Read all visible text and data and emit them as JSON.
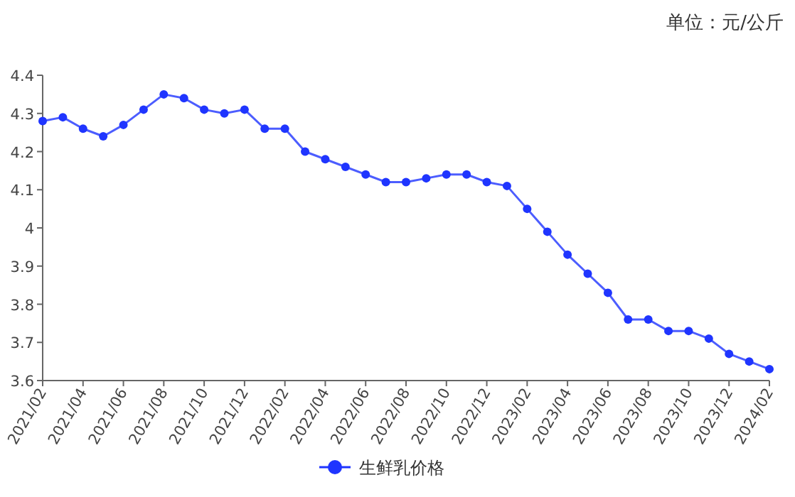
{
  "chart_data": {
    "type": "line",
    "annotations": [
      "单位：元/公斤"
    ],
    "categories": [
      "2021/02",
      null,
      "2021/04",
      null,
      "2021/06",
      null,
      "2021/08",
      null,
      "2021/10",
      null,
      "2021/12",
      null,
      "2022/02",
      null,
      "2022/04",
      null,
      "2022/06",
      null,
      "2022/08",
      null,
      "2022/10",
      null,
      "2022/12",
      null,
      "2023/02",
      null,
      "2023/04",
      null,
      "2023/06",
      null,
      "2023/08",
      null,
      "2023/10",
      null,
      "2023/12",
      null,
      "2024/02"
    ],
    "series": [
      {
        "name": "生鲜乳价格",
        "color": "#1f35ff",
        "values": [
          4.28,
          4.29,
          4.26,
          4.24,
          4.27,
          4.31,
          4.35,
          4.34,
          4.31,
          4.3,
          4.31,
          4.26,
          4.26,
          4.2,
          4.18,
          4.16,
          4.14,
          4.12,
          4.12,
          4.13,
          4.14,
          4.14,
          4.12,
          4.11,
          4.05,
          3.99,
          3.93,
          3.88,
          3.83,
          3.76,
          3.76,
          3.73,
          3.73,
          3.71,
          3.67,
          3.65,
          3.63
        ]
      }
    ],
    "ylim": [
      3.6,
      4.4
    ],
    "yticks": [
      3.6,
      3.7,
      3.8,
      3.9,
      4,
      4.1,
      4.2,
      4.3,
      4.4
    ],
    "marker": "circle",
    "legend": "bottom",
    "grid": false
  }
}
